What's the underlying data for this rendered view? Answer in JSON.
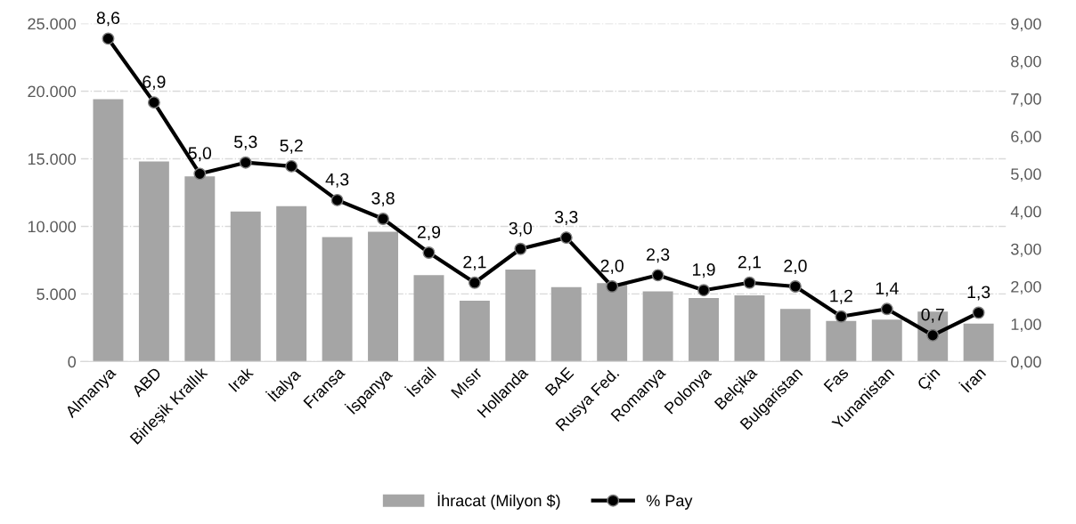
{
  "chart_data": {
    "type": "bar",
    "categories": [
      "Almanya",
      "ABD",
      "Birleşik Krallık",
      "Irak",
      "İtalya",
      "Fransa",
      "İspanya",
      "İsrail",
      "Mısır",
      "Hollanda",
      "BAE",
      "Rusya Fed.",
      "Romanya",
      "Polonya",
      "Belçika",
      "Bulgaristan",
      "Fas",
      "Yunanistan",
      "Çin",
      "İran"
    ],
    "series": [
      {
        "name": "İhracat (Milyon $)",
        "color": "#a5a5a5",
        "values": [
          19400,
          14800,
          13700,
          11100,
          11500,
          9200,
          9600,
          6400,
          4500,
          6800,
          5500,
          5800,
          5200,
          4700,
          4900,
          3900,
          3000,
          3100,
          3700,
          2800
        ]
      },
      {
        "name": "% Pay",
        "type": "line",
        "axis": "y2",
        "color": "#000000",
        "marker": "circle",
        "values": [
          8.6,
          6.9,
          5.0,
          5.3,
          5.2,
          4.3,
          3.8,
          2.9,
          2.1,
          3.0,
          3.3,
          2.0,
          2.3,
          1.9,
          2.1,
          2.0,
          1.2,
          1.4,
          0.7,
          1.3
        ],
        "value_labels": [
          "8,6",
          "6,9",
          "5,0",
          "5,3",
          "5,2",
          "4,3",
          "3,8",
          "2,9",
          "2,1",
          "3,0",
          "3,3",
          "2,0",
          "2,3",
          "1,9",
          "2,1",
          "2,0",
          "1,2",
          "1,4",
          "0,7",
          "1,3"
        ]
      }
    ],
    "ylim": [
      0,
      25000
    ],
    "yticks": [
      0,
      {
        "value": 5000,
        "label": "5.000"
      },
      {
        "value": 10000,
        "label": "10.000"
      },
      {
        "value": 15000,
        "label": "15.000"
      },
      {
        "value": 20000,
        "label": "20.000"
      },
      {
        "value": 25000,
        "label": "25.000"
      }
    ],
    "y2lim": [
      0,
      9
    ],
    "y2ticks": [
      {
        "value": 0,
        "label": "0,00"
      },
      {
        "value": 1,
        "label": "1,00"
      },
      {
        "value": 2,
        "label": "2,00"
      },
      {
        "value": 3,
        "label": "3,00"
      },
      {
        "value": 4,
        "label": "4,00"
      },
      {
        "value": 5,
        "label": "5,00"
      },
      {
        "value": 6,
        "label": "6,00"
      },
      {
        "value": 7,
        "label": "7,00"
      },
      {
        "value": 8,
        "label": "8,00"
      },
      {
        "value": 9,
        "label": "9,00"
      }
    ],
    "grid": "y",
    "legend": "bottom"
  }
}
